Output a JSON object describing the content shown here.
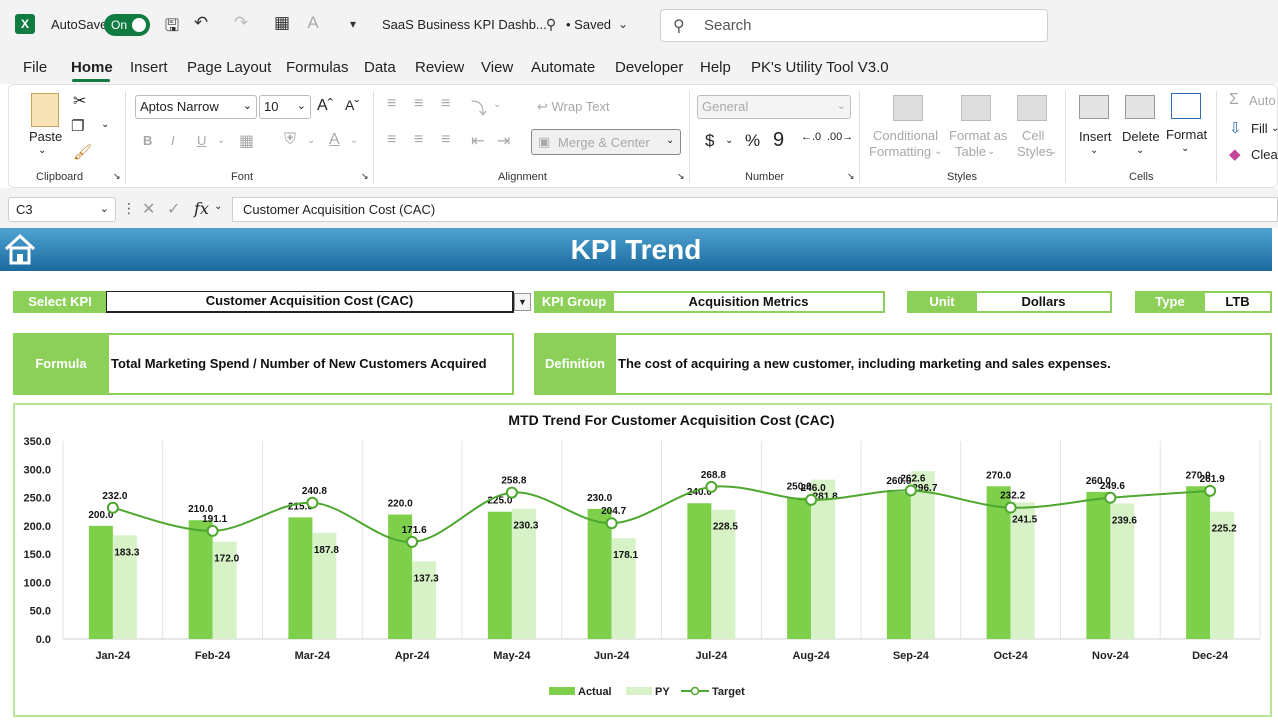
{
  "titlebar": {
    "autosave_label": "AutoSave",
    "autosave_state": "On",
    "document_title": "SaaS Business KPI Dashb...",
    "saved_status": "• Saved",
    "search_placeholder": "Search"
  },
  "menu": {
    "items": [
      "File",
      "Home",
      "Insert",
      "Page Layout",
      "Formulas",
      "Data",
      "Review",
      "View",
      "Automate",
      "Developer",
      "Help",
      "PK's Utility Tool V3.0"
    ],
    "active": "Home"
  },
  "ribbon": {
    "clipboard": {
      "paste": "Paste",
      "label": "Clipboard"
    },
    "font": {
      "name": "Aptos Narrow",
      "size": "10",
      "bold": "B",
      "italic": "I",
      "underline": "U",
      "label": "Font"
    },
    "alignment": {
      "wrap_text": "Wrap Text",
      "merge_center": "Merge & Center",
      "label": "Alignment"
    },
    "number": {
      "format": "General",
      "currency": "$",
      "percent": "%",
      "comma": "9",
      "label": "Number"
    },
    "styles": {
      "conditional_1": "Conditional",
      "conditional_2": "Formatting",
      "format_table_1": "Format as",
      "format_table_2": "Table",
      "cell_styles_1": "Cell",
      "cell_styles_2": "Styles",
      "label": "Styles"
    },
    "cells": {
      "insert": "Insert",
      "delete": "Delete",
      "format": "Format",
      "label": "Cells"
    },
    "editing": {
      "autosum": "Auto",
      "fill": "Fill",
      "clear": "Clear"
    }
  },
  "formula_bar": {
    "cell_ref": "C3",
    "fx": "fx",
    "formula": "Customer Acquisition Cost (CAC)"
  },
  "sheet": {
    "title": "KPI Trend",
    "select_kpi_label": "Select KPI",
    "select_kpi_value": "Customer Acquisition Cost (CAC)",
    "kpi_group_label": "KPI Group",
    "kpi_group_value": "Acquisition Metrics",
    "unit_label": "Unit",
    "unit_value": "Dollars",
    "type_label": "Type",
    "type_value": "LTB",
    "formula_label": "Formula",
    "formula_value": "Total Marketing Spend / Number of New Customers Acquired",
    "definition_label": "Definition",
    "definition_value": "The cost of acquiring a new customer, including marketing and sales expenses."
  },
  "colors": {
    "excel_green": "#107c41",
    "label_green": "#8cd05a",
    "actual_bar": "#7ed04b",
    "py_bar": "#d6f2c6",
    "target_line": "#4ea72e",
    "header_blue": "#1b6aa0"
  },
  "chart_data": {
    "type": "bar",
    "title": "MTD Trend For Customer Acquisition Cost (CAC)",
    "categories": [
      "Jan-24",
      "Feb-24",
      "Mar-24",
      "Apr-24",
      "May-24",
      "Jun-24",
      "Jul-24",
      "Aug-24",
      "Sep-24",
      "Oct-24",
      "Nov-24",
      "Dec-24"
    ],
    "series": [
      {
        "name": "Actual",
        "kind": "bar",
        "values": [
          200.0,
          210.0,
          215.0,
          220.0,
          225.0,
          230.0,
          240.0,
          250.0,
          260.0,
          270.0,
          260.0,
          270.0
        ]
      },
      {
        "name": "PY",
        "kind": "bar",
        "values": [
          183.3,
          172.0,
          187.8,
          137.3,
          230.3,
          178.1,
          228.5,
          281.8,
          296.7,
          241.5,
          239.6,
          225.2
        ]
      },
      {
        "name": "Target",
        "kind": "line",
        "values": [
          232.0,
          191.1,
          240.8,
          171.6,
          258.8,
          204.7,
          268.8,
          246.0,
          262.6,
          232.2,
          249.6,
          261.9
        ]
      }
    ],
    "ylim": [
      0,
      350
    ],
    "yticks": [
      "0.0",
      "50.0",
      "100.0",
      "150.0",
      "200.0",
      "250.0",
      "300.0",
      "350.0"
    ],
    "grid": "vertical",
    "legend": "bottom"
  }
}
